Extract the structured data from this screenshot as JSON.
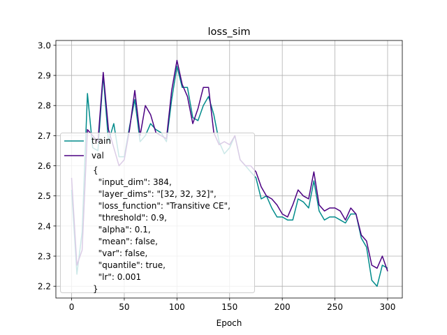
{
  "chart_data": {
    "type": "line",
    "title": "loss_sim",
    "xlabel": "Epoch",
    "ylabel": "",
    "xlim": [
      -14.95,
      313.95
    ],
    "ylim": [
      2.161,
      3.016
    ],
    "grid": true,
    "x_ticks": [
      0,
      50,
      100,
      150,
      200,
      250,
      300
    ],
    "y_ticks": [
      2.2,
      2.3,
      2.4,
      2.5,
      2.6,
      2.7,
      2.8,
      2.9,
      3.0
    ],
    "x_tick_labels": [
      "0",
      "50",
      "100",
      "150",
      "200",
      "250",
      "300"
    ],
    "y_tick_labels": [
      "2.2",
      "2.3",
      "2.4",
      "2.5",
      "2.6",
      "2.7",
      "2.8",
      "2.9",
      "3.0"
    ],
    "legend_placement": "center-left",
    "series": [
      {
        "name": "train",
        "color": "#008b8b",
        "x": [
          0,
          5,
          10,
          15,
          20,
          25,
          30,
          35,
          40,
          45,
          50,
          55,
          60,
          65,
          70,
          75,
          80,
          85,
          90,
          95,
          100,
          105,
          110,
          115,
          120,
          125,
          130,
          135,
          140,
          145,
          150,
          155,
          160,
          165,
          170,
          175,
          180,
          185,
          190,
          195,
          200,
          205,
          210,
          215,
          220,
          225,
          230,
          235,
          240,
          245,
          250,
          255,
          260,
          265,
          270,
          275,
          280,
          285,
          290,
          295,
          300
        ],
        "values": [
          2.52,
          2.24,
          2.38,
          2.84,
          2.66,
          2.65,
          2.9,
          2.68,
          2.74,
          2.63,
          2.63,
          2.73,
          2.82,
          2.68,
          2.7,
          2.74,
          2.72,
          2.71,
          2.68,
          2.82,
          2.93,
          2.86,
          2.86,
          2.76,
          2.75,
          2.8,
          2.83,
          2.77,
          2.68,
          2.64,
          2.66,
          2.7,
          2.62,
          2.6,
          2.58,
          2.56,
          2.49,
          2.5,
          2.46,
          2.43,
          2.43,
          2.42,
          2.42,
          2.49,
          2.48,
          2.46,
          2.55,
          2.45,
          2.42,
          2.43,
          2.43,
          2.42,
          2.41,
          2.44,
          2.44,
          2.36,
          2.33,
          2.22,
          2.2,
          2.27,
          2.26
        ]
      },
      {
        "name": "val",
        "color": "#4b0082",
        "x": [
          0,
          5,
          10,
          15,
          20,
          25,
          30,
          35,
          40,
          45,
          50,
          55,
          60,
          65,
          70,
          75,
          80,
          85,
          90,
          95,
          100,
          105,
          110,
          115,
          120,
          125,
          130,
          135,
          140,
          145,
          150,
          155,
          160,
          165,
          170,
          175,
          180,
          185,
          190,
          195,
          200,
          205,
          210,
          215,
          220,
          225,
          230,
          235,
          240,
          245,
          250,
          255,
          260,
          265,
          270,
          275,
          280,
          285,
          290,
          295,
          300
        ],
        "values": [
          2.56,
          2.27,
          2.32,
          2.72,
          2.7,
          2.68,
          2.91,
          2.72,
          2.66,
          2.6,
          2.62,
          2.72,
          2.85,
          2.7,
          2.8,
          2.77,
          2.71,
          2.7,
          2.69,
          2.85,
          2.95,
          2.87,
          2.83,
          2.74,
          2.79,
          2.86,
          2.86,
          2.71,
          2.67,
          2.68,
          2.67,
          2.7,
          2.62,
          2.6,
          2.6,
          2.58,
          2.53,
          2.5,
          2.49,
          2.47,
          2.44,
          2.43,
          2.47,
          2.52,
          2.5,
          2.49,
          2.58,
          2.47,
          2.45,
          2.46,
          2.46,
          2.45,
          2.42,
          2.46,
          2.44,
          2.37,
          2.35,
          2.27,
          2.26,
          2.3,
          2.25
        ]
      }
    ],
    "legend_text": "{\n  \"input_dim\": 384,\n  \"layer_dims\": \"[32, 32, 32]\",\n  \"loss_function\": \"Transitive CE\",\n  \"threshold\": 0.9,\n  \"alpha\": 0.1,\n  \"mean\": false,\n  \"var\": false,\n  \"quantile\": true,\n  \"lr\": 0.001\n}"
  }
}
